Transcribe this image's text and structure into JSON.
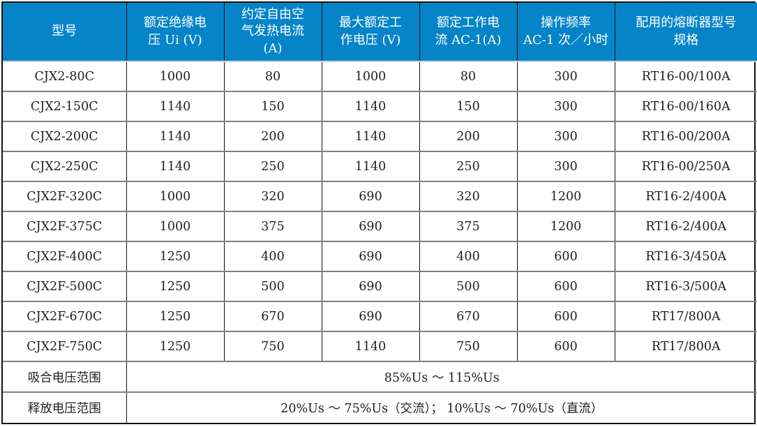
{
  "colors": {
    "header_bg": "#0584c8",
    "header_text": "#ffffff",
    "grid_vertical": "#111111",
    "grid_horizontal": "#7f7f7f",
    "header_underline": "#c9d2da",
    "outer_border": "#111111"
  },
  "table": {
    "columns": [
      {
        "label": "型号"
      },
      {
        "label": "额定绝缘电\n压 Ui (V)"
      },
      {
        "label": "约定自由空\n气发热电流\n(A)"
      },
      {
        "label": "最大额定工\n作电压 (V)"
      },
      {
        "label": "额定工作电\n流 AC-1(A)"
      },
      {
        "label": "操作频率\nAC-1 次／小时"
      },
      {
        "label": "配用的熔断器型号\n规格"
      }
    ],
    "rows": [
      [
        "CJX2-80C",
        "1000",
        "80",
        "1000",
        "80",
        "300",
        "RT16-00/100A"
      ],
      [
        "CJX2-150C",
        "1140",
        "150",
        "1140",
        "150",
        "300",
        "RT16-00/160A"
      ],
      [
        "CJX2-200C",
        "1140",
        "200",
        "1140",
        "200",
        "300",
        "RT16-00/200A"
      ],
      [
        "CJX2-250C",
        "1140",
        "250",
        "1140",
        "250",
        "300",
        "RT16-00/250A"
      ],
      [
        "CJX2F-320C",
        "1000",
        "320",
        "690",
        "320",
        "1200",
        "RT16-2/400A"
      ],
      [
        "CJX2F-375C",
        "1000",
        "375",
        "690",
        "375",
        "1200",
        "RT16-2/400A"
      ],
      [
        "CJX2F-400C",
        "1250",
        "400",
        "690",
        "400",
        "600",
        "RT16-3/450A"
      ],
      [
        "CJX2F-500C",
        "1250",
        "500",
        "690",
        "500",
        "600",
        "RT16-3/500A"
      ],
      [
        "CJX2F-670C",
        "1250",
        "670",
        "690",
        "670",
        "600",
        "RT17/800A"
      ],
      [
        "CJX2F-750C",
        "1250",
        "750",
        "1140",
        "750",
        "600",
        "RT17/800A"
      ]
    ],
    "footer_rows": [
      {
        "label": "吸合电压范围",
        "value": "85%Us ～ 115%Us"
      },
      {
        "label": "释放电压范围",
        "value": "20%Us ～ 75%Us（交流）； 10%Us ～ 70%Us（直流）"
      }
    ]
  }
}
